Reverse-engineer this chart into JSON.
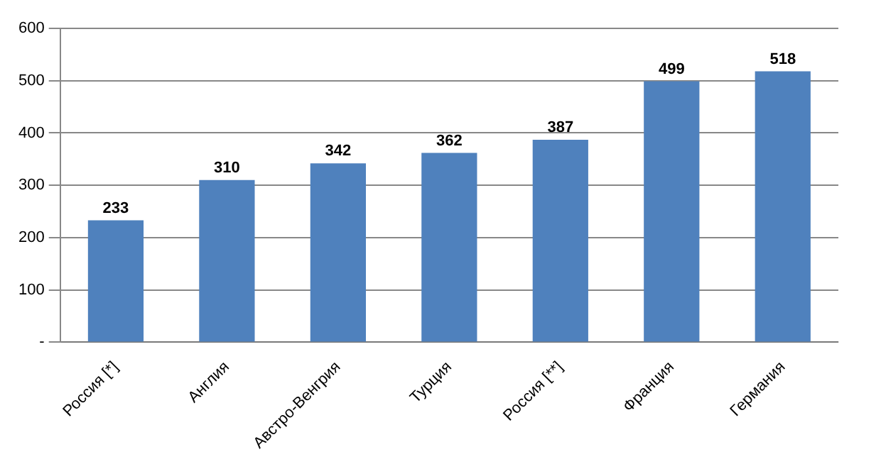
{
  "chart_data": {
    "type": "bar",
    "categories": [
      "Россия [*]",
      "Англия",
      "Австро-Венгрия",
      "Турция",
      "Россия [**]",
      "Франция",
      "Германия"
    ],
    "values": [
      233,
      310,
      342,
      362,
      387,
      499,
      518
    ],
    "color": "#4f81bd",
    "data_labels": true,
    "grid": "y",
    "legend": false,
    "ylim": [
      0,
      600
    ],
    "yticks": [
      {
        "value": 0,
        "label": "-"
      },
      100,
      200,
      300,
      400,
      500,
      600
    ]
  }
}
